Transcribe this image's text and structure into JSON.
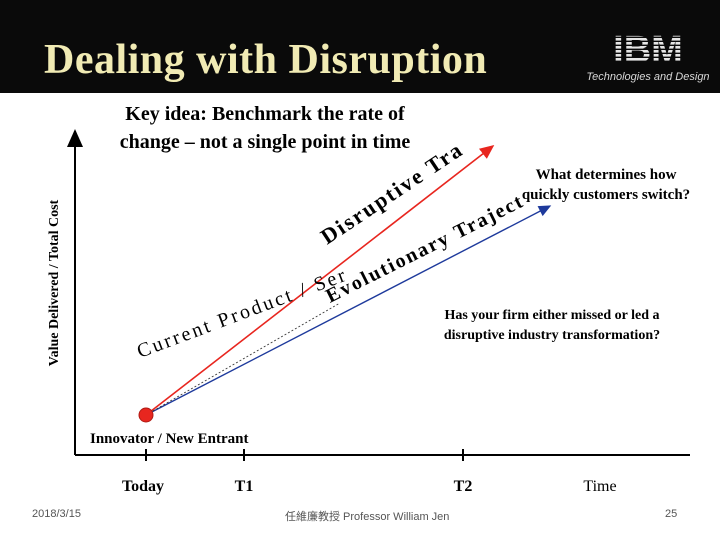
{
  "header": {
    "title": "Dealing with Disruption",
    "logo_text": "IBM",
    "logo_subtitle": "Technologies and Design"
  },
  "diagram": {
    "key_idea_line1": "Key idea: Benchmark the rate of",
    "key_idea_line2": "change – not a single point in time",
    "y_axis_label": "Value Delivered / Total Cost",
    "disruptive_label": "Disruptive Trajectory",
    "evolutionary_label": "Evolutionary Trajectory",
    "current_label": "Current Product / Service",
    "question1_line1": "What determines how",
    "question1_line2": "quickly customers switch?",
    "question2_line1": "Has your firm either missed or led a",
    "question2_line2": "disruptive industry transformation?",
    "origin_label": "Innovator / New Entrant",
    "x_ticks": [
      "Today",
      "T1",
      "T2"
    ],
    "x_axis_label": "Time",
    "colors": {
      "axis": "#000000",
      "origin_point": "#e8261f",
      "arrow": "#e8261f",
      "header_bg": "#0a0a0a",
      "title": "#f1ebb4"
    }
  },
  "footer": {
    "date": "2018/3/15",
    "author": "任維廉教授 Professor William Jen",
    "page": "25"
  }
}
